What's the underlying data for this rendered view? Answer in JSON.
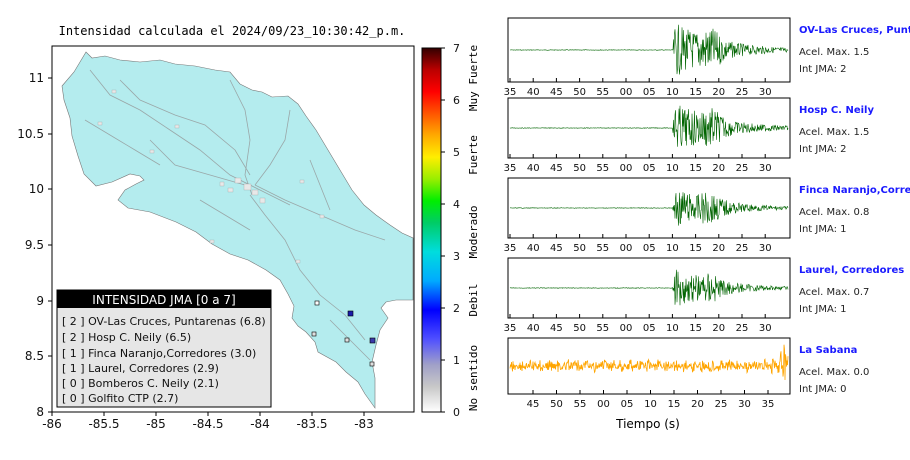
{
  "map": {
    "title": "Intensidad calculada el 2024/09/23_10:30:42_p.m.",
    "x_ticks": [
      "-86",
      "-85.5",
      "-85",
      "-84.5",
      "-84",
      "-83.5",
      "-83"
    ],
    "y_ticks": [
      "11",
      "10.5",
      "10",
      "9.5",
      "9",
      "8.5",
      "8"
    ],
    "land_color": "#b4ecee",
    "legend": {
      "title": "INTENSIDAD JMA [0 a 7]",
      "entries": [
        "[ 2 ]  OV-Las Cruces, Puntarenas (6.8)",
        "[ 2 ]  Hosp C. Neily (6.5)",
        "[ 1 ]  Finca Naranjo,Corredores (3.0)",
        "[ 1 ]  Laurel, Corredores (2.9)",
        "[ 0 ]  Bomberos C. Neily (2.1)",
        "[ 0 ]  Golfito CTP (2.7)"
      ]
    }
  },
  "colorbar": {
    "ticks": [
      "7",
      "6",
      "5",
      "4",
      "3",
      "2",
      "1",
      "0"
    ],
    "labels": [
      "Muy Fuerte",
      "Fuerte",
      "Moderado",
      "Debil",
      "No sentido"
    ]
  },
  "chart_data": [
    {
      "type": "line",
      "title": "OV-Las Cruces, Puntarenas",
      "info": [
        "Acel. Max. 1.5",
        "Int JMA: 2"
      ],
      "color": "#006400",
      "x_ticks": [
        "35",
        "40",
        "45",
        "50",
        "55",
        "00",
        "05",
        "10",
        "15",
        "20",
        "25",
        "30"
      ],
      "onset_tick": "10",
      "amplitude": 1.5
    },
    {
      "type": "line",
      "title": "Hosp C. Neily",
      "info": [
        "Acel. Max. 1.5",
        "Int JMA: 2"
      ],
      "color": "#006400",
      "x_ticks": [
        "35",
        "40",
        "45",
        "50",
        "55",
        "00",
        "05",
        "10",
        "15",
        "20",
        "25",
        "30"
      ],
      "onset_tick": "10",
      "amplitude": 1.5
    },
    {
      "type": "line",
      "title": "Finca Naranjo,Corredores",
      "info": [
        "Acel. Max. 0.8",
        "Int JMA: 1"
      ],
      "color": "#006400",
      "x_ticks": [
        "35",
        "40",
        "45",
        "50",
        "55",
        "00",
        "05",
        "10",
        "15",
        "20",
        "25",
        "30"
      ],
      "onset_tick": "10",
      "amplitude": 0.8
    },
    {
      "type": "line",
      "title": "Laurel, Corredores",
      "info": [
        "Acel. Max. 0.7",
        "Int JMA: 1"
      ],
      "color": "#006400",
      "x_ticks": [
        "35",
        "40",
        "45",
        "50",
        "55",
        "00",
        "05",
        "10",
        "15",
        "20",
        "25",
        "30"
      ],
      "onset_tick": "10",
      "amplitude": 0.7
    },
    {
      "type": "line",
      "title": "La Sabana",
      "info": [
        "Acel. Max. 0.0",
        "Int JMA: 0"
      ],
      "color": "#ffa500",
      "x_ticks": [
        "45",
        "50",
        "55",
        "00",
        "05",
        "10",
        "15",
        "20",
        "25",
        "30",
        "35"
      ],
      "xlabel": "Tiempo (s)",
      "onset_tick": null,
      "amplitude": 0.0
    }
  ]
}
